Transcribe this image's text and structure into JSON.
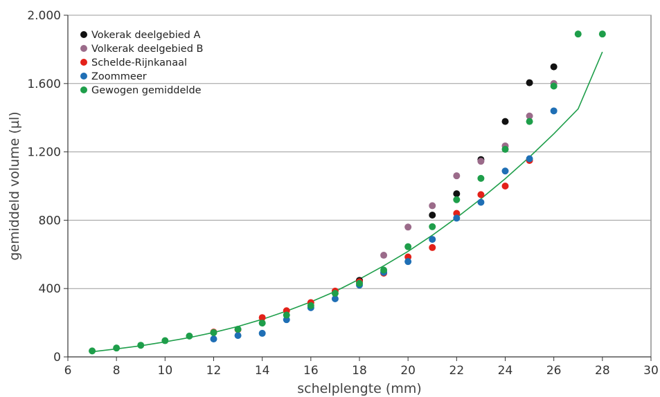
{
  "chart_data": {
    "type": "scatter",
    "xlabel": "schelplengte (mm)",
    "ylabel": "gemiddeld volume (µl)",
    "xlim": [
      6,
      30
    ],
    "ylim": [
      0,
      2000
    ],
    "xticks": [
      6,
      8,
      10,
      12,
      14,
      16,
      18,
      20,
      22,
      24,
      26,
      28,
      30
    ],
    "xtick_labels": [
      "6",
      "8",
      "10",
      "12",
      "14",
      "16",
      "18",
      "20",
      "22",
      "24",
      "26",
      "28",
      "30"
    ],
    "yticks": [
      0,
      400,
      800,
      1200,
      1600,
      2000
    ],
    "ytick_labels": [
      "0",
      "400",
      "800",
      "1.200",
      "1.600",
      "2.000"
    ],
    "grid": "horizontal",
    "legend_position": "top-left",
    "series": [
      {
        "name": "Vokerak deelgebied A",
        "color": "#111111",
        "points": [
          [
            18,
            448
          ],
          [
            21,
            830
          ],
          [
            22,
            955
          ],
          [
            23,
            1155
          ],
          [
            24,
            1378
          ],
          [
            25,
            1605
          ],
          [
            26,
            1698
          ]
        ]
      },
      {
        "name": "Volkerak deelgebied B",
        "color": "#9b6b8a",
        "points": [
          [
            19,
            595
          ],
          [
            20,
            760
          ],
          [
            21,
            885
          ],
          [
            22,
            1060
          ],
          [
            23,
            1145
          ],
          [
            24,
            1235
          ],
          [
            25,
            1410
          ],
          [
            26,
            1600
          ]
        ]
      },
      {
        "name": "Schelde-Rijnkanaal",
        "color": "#e32119",
        "points": [
          [
            12,
            145
          ],
          [
            13,
            160
          ],
          [
            14,
            230
          ],
          [
            15,
            270
          ],
          [
            16,
            318
          ],
          [
            17,
            385
          ],
          [
            18,
            440
          ],
          [
            19,
            490
          ],
          [
            20,
            585
          ],
          [
            21,
            640
          ],
          [
            22,
            840
          ],
          [
            23,
            950
          ],
          [
            24,
            1000
          ],
          [
            25,
            1150
          ]
        ]
      },
      {
        "name": "Zoommeer",
        "color": "#1f6fb5",
        "points": [
          [
            12,
            105
          ],
          [
            13,
            125
          ],
          [
            14,
            138
          ],
          [
            15,
            218
          ],
          [
            16,
            288
          ],
          [
            17,
            340
          ],
          [
            18,
            420
          ],
          [
            19,
            495
          ],
          [
            20,
            558
          ],
          [
            21,
            688
          ],
          [
            22,
            812
          ],
          [
            23,
            905
          ],
          [
            24,
            1088
          ],
          [
            25,
            1160
          ],
          [
            26,
            1440
          ]
        ]
      },
      {
        "name": "Gewogen gemiddelde",
        "color": "#1e9e4a",
        "points": [
          [
            7,
            35
          ],
          [
            8,
            52
          ],
          [
            9,
            68
          ],
          [
            10,
            95
          ],
          [
            11,
            122
          ],
          [
            12,
            142
          ],
          [
            13,
            162
          ],
          [
            14,
            198
          ],
          [
            15,
            245
          ],
          [
            16,
            300
          ],
          [
            17,
            372
          ],
          [
            18,
            430
          ],
          [
            19,
            508
          ],
          [
            20,
            645
          ],
          [
            21,
            762
          ],
          [
            22,
            920
          ],
          [
            23,
            1045
          ],
          [
            24,
            1215
          ],
          [
            25,
            1378
          ],
          [
            26,
            1585
          ],
          [
            27,
            1890
          ],
          [
            28,
            1890
          ]
        ]
      }
    ],
    "fit_curve": {
      "color": "#1e9e4a",
      "points": [
        [
          7,
          30
        ],
        [
          8,
          47
        ],
        [
          9,
          65
        ],
        [
          10,
          88
        ],
        [
          11,
          113
        ],
        [
          12,
          143
        ],
        [
          13,
          178
        ],
        [
          14,
          220
        ],
        [
          15,
          268
        ],
        [
          16,
          322
        ],
        [
          17,
          383
        ],
        [
          18,
          455
        ],
        [
          19,
          533
        ],
        [
          20,
          618
        ],
        [
          21,
          712
        ],
        [
          22,
          815
        ],
        [
          23,
          925
        ],
        [
          24,
          1043
        ],
        [
          25,
          1170
        ],
        [
          26,
          1306
        ],
        [
          27,
          1452
        ],
        [
          28,
          1785
        ]
      ]
    }
  }
}
